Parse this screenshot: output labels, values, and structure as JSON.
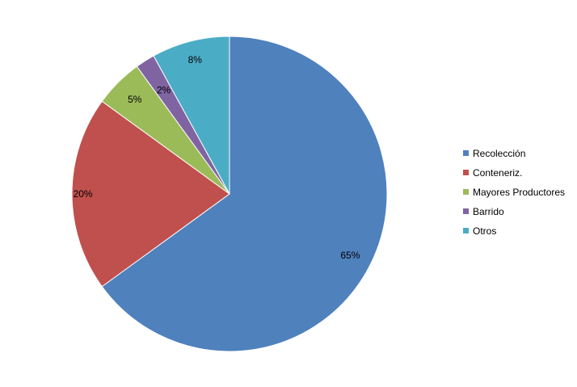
{
  "chart_data": {
    "type": "pie",
    "title": "",
    "categories": [
      "Recolección",
      "Conteneriz.",
      "Mayores Productores",
      "Barrido",
      "Otros"
    ],
    "values": [
      65,
      20,
      5,
      2,
      8
    ],
    "value_labels": [
      "65%",
      "20%",
      "5%",
      "2%",
      "8%"
    ],
    "colors": [
      "#4F81BD",
      "#C0504D",
      "#9BBB59",
      "#8064A2",
      "#4BACC6"
    ],
    "start": "12 o'clock",
    "direction": "clockwise",
    "legend_position": "right"
  }
}
